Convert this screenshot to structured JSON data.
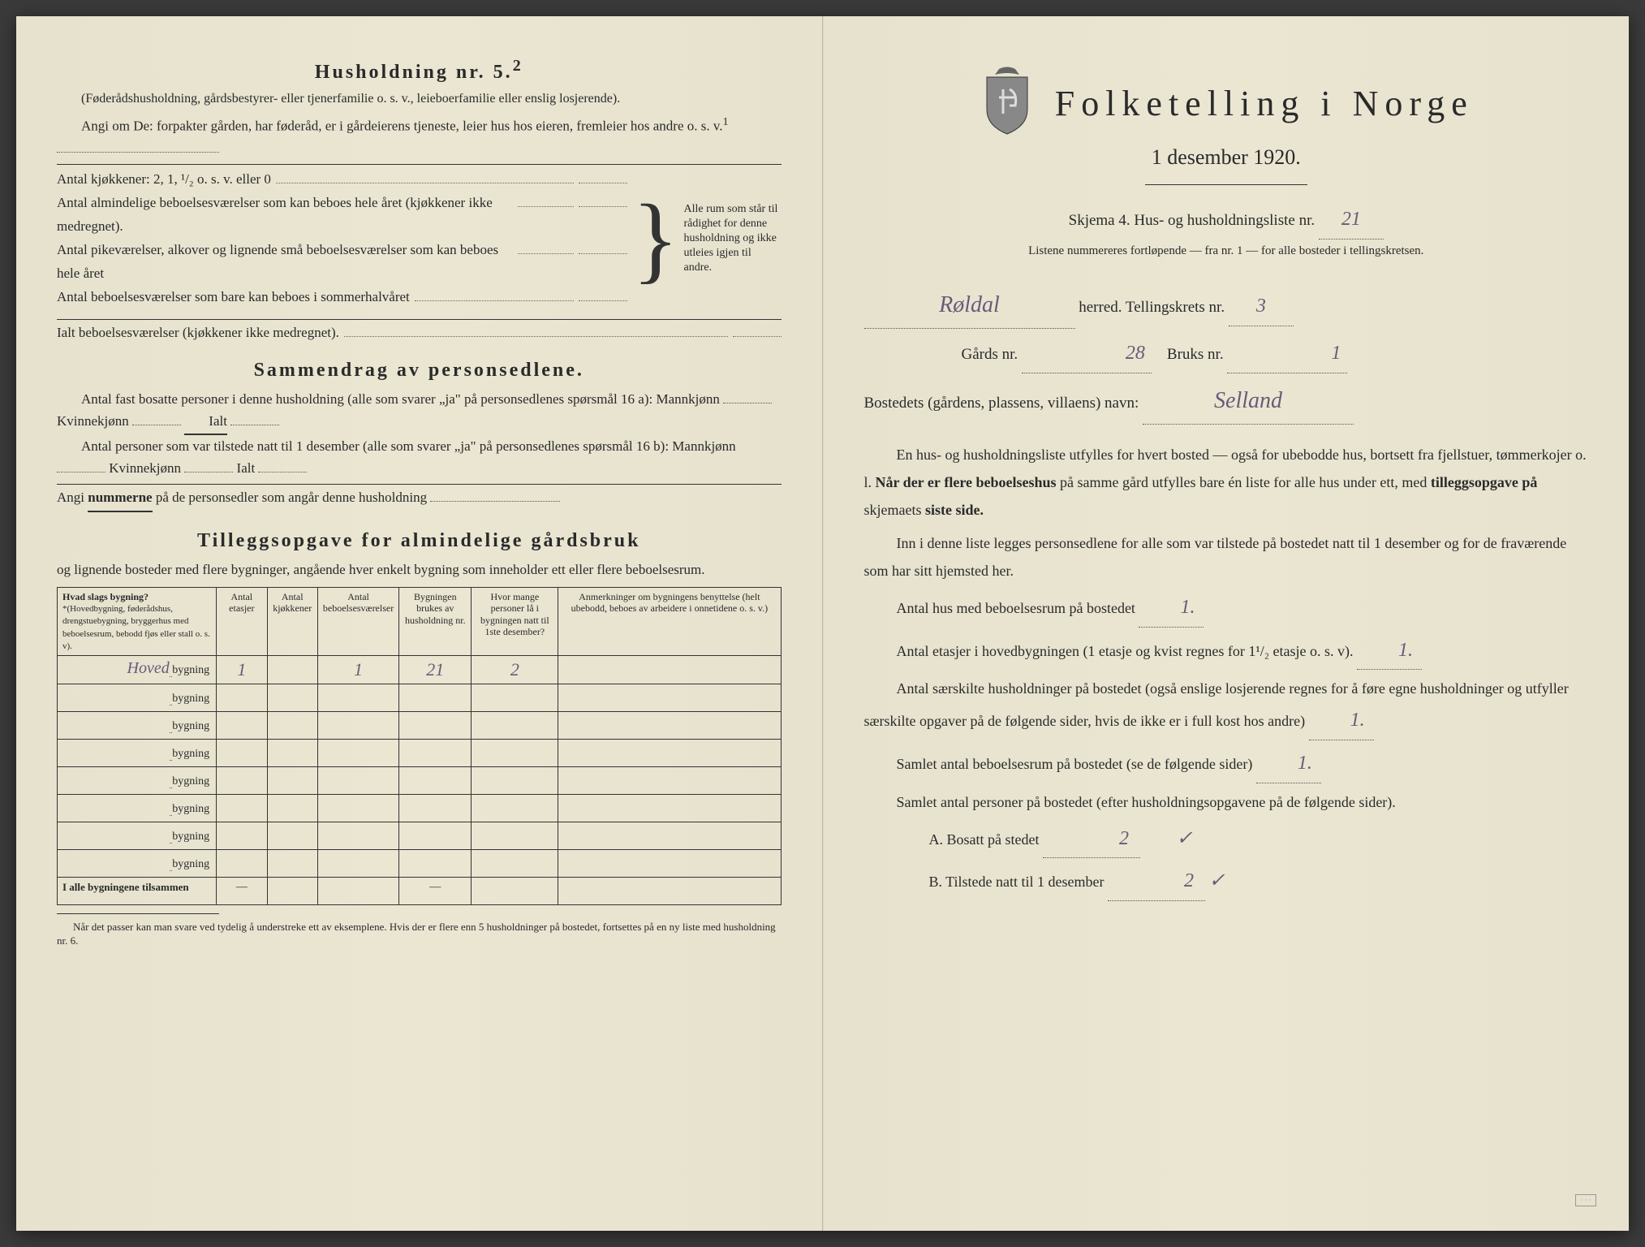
{
  "colors": {
    "paper": "#e8e4d0",
    "ink": "#2a2a2a",
    "handwriting": "#6a5a7a",
    "border": "#333333"
  },
  "left": {
    "h5_title": "Husholdning nr. 5.",
    "h5_sup": "2",
    "h5_sub": "(Føderådshusholdning, gårdsbestyrer- eller tjenerfamilie o. s. v., leieboerfamilie eller enslig losjerende).",
    "angi_line": "Angi om De: forpakter gården, har føderåd, er i gårdeierens tjeneste, leier hus hos eieren, fremleier hos andre o. s. v.",
    "angi_sup": "1",
    "kjokken": "Antal kjøkkener: 2, 1, ¹/₂ o. s. v. eller 0",
    "brace_items": [
      "Antal almindelige beboelsesværelser som kan beboes hele året (kjøkkener ikke medregnet).",
      "Antal pikeværelser, alkover og lignende små beboelsesværelser som kan beboes hele året",
      "Antal beboelsesværelser som bare kan beboes i sommerhalvåret"
    ],
    "brace_right": "Alle rum som står til rådighet for denne husholdning og ikke utleies igjen til andre.",
    "ialt": "Ialt beboelsesværelser (kjøkkener ikke medregnet).",
    "sammendrag_title": "Sammendrag av personsedlene.",
    "sammendrag_p1": "Antal fast bosatte personer i denne husholdning (alle som svarer „ja\" på personsedlenes spørsmål 16 a): Mannkjønn",
    "kvinne": "Kvinnekjønn",
    "ialt_label": "Ialt",
    "sammendrag_p2": "Antal personer som var tilstede natt til 1 desember (alle som svarer „ja\" på personsedlenes spørsmål 16 b): Mannkjønn",
    "angi_num": "Angi",
    "angi_num_bold": "nummerne",
    "angi_num_rest": "på de personsedler som angår denne husholdning",
    "tillegg_title": "Tilleggsopgave for almindelige gårdsbruk",
    "tillegg_sub": "og lignende bosteder med flere bygninger, angående hver enkelt bygning som inneholder ett eller flere beboelsesrum.",
    "table": {
      "headers": [
        "Hvad slags bygning?",
        "Antal etasjer",
        "Antal kjøkkener",
        "Antal beboelsesværelser",
        "Bygningen brukes av husholdning nr.",
        "Hvor mange personer lå i bygningen natt til 1ste desember?",
        "Anmerkninger om bygningens benyttelse (helt ubebodd, beboes av arbeidere i onnetidene o. s. v.)"
      ],
      "header_note": "*(Hovedbygning, føderådshus, drengstuebygning, bryggerhus med beboelsesrum, bebodd fjøs eller stall o. s. v).",
      "rows": [
        {
          "type_hw": "Hoved",
          "suffix": "bygning",
          "etasjer": "1",
          "kjokken": "",
          "bebo": "1",
          "hushold": "21",
          "personer": "2",
          "anm": ""
        },
        {
          "type_hw": "",
          "suffix": "bygning",
          "etasjer": "",
          "kjokken": "",
          "bebo": "",
          "hushold": "",
          "personer": "",
          "anm": ""
        },
        {
          "type_hw": "",
          "suffix": "bygning",
          "etasjer": "",
          "kjokken": "",
          "bebo": "",
          "hushold": "",
          "personer": "",
          "anm": ""
        },
        {
          "type_hw": "",
          "suffix": "bygning",
          "etasjer": "",
          "kjokken": "",
          "bebo": "",
          "hushold": "",
          "personer": "",
          "anm": ""
        },
        {
          "type_hw": "",
          "suffix": "bygning",
          "etasjer": "",
          "kjokken": "",
          "bebo": "",
          "hushold": "",
          "personer": "",
          "anm": ""
        },
        {
          "type_hw": "",
          "suffix": "bygning",
          "etasjer": "",
          "kjokken": "",
          "bebo": "",
          "hushold": "",
          "personer": "",
          "anm": ""
        },
        {
          "type_hw": "",
          "suffix": "bygning",
          "etasjer": "",
          "kjokken": "",
          "bebo": "",
          "hushold": "",
          "personer": "",
          "anm": ""
        },
        {
          "type_hw": "",
          "suffix": "bygning",
          "etasjer": "",
          "kjokken": "",
          "bebo": "",
          "hushold": "",
          "personer": "",
          "anm": ""
        }
      ],
      "total_label": "I alle bygningene tilsammen",
      "dash": "—"
    },
    "footnote": "Når det passer kan man svare ved tydelig å understreke ett av eksemplene. Hvis der er flere enn 5 husholdninger på bostedet, fortsettes på en ny liste med husholdning nr. 6."
  },
  "right": {
    "title": "Folketelling i Norge",
    "date": "1 desember 1920.",
    "skjema": "Skjema 4.  Hus- og husholdningsliste nr.",
    "liste_nr": "21",
    "listene": "Listene nummereres fortløpende — fra nr. 1 — for alle bosteder i tellingskretsen.",
    "herred_hw": "Røldal",
    "herred_label": "herred.  Tellingskrets nr.",
    "krets_nr": "3",
    "gard_label": "Gårds nr.",
    "gard_nr": "28",
    "bruks_label": "Bruks nr.",
    "bruks_nr": "1",
    "bosted_label": "Bostedets (gårdens, plassens, villaens) navn:",
    "bosted_hw": "Selland",
    "p1": "En hus- og husholdningsliste utfylles for hvert bosted — også for ubebodde hus, bortsett fra fjellstuer, tømmerkojer o. l.",
    "p1b_pre": "Når der er",
    "p1b_bold": "flere beboelseshus",
    "p1b_post": "på samme gård utfylles bare én liste for alle hus under ett, med",
    "p1b_bold2": "tilleggsopgave på",
    "p1b_end": "skjemaets",
    "p1b_bold3": "siste side.",
    "p2": "Inn i denne liste legges personsedlene for alle som var tilstede på bostedet natt til 1 desember og for de fraværende som har sitt hjemsted her.",
    "q1": "Antal hus med beboelsesrum på bostedet",
    "q1_val": "1.",
    "q2": "Antal etasjer i hovedbygningen (1 etasje og kvist regnes for 1¹/₂ etasje o. s. v).",
    "q2_val": "1.",
    "q3": "Antal særskilte husholdninger på bostedet (også enslige losjerende regnes for å føre egne husholdninger og utfyller særskilte opgaver på de følgende sider, hvis de ikke er i full kost hos andre)",
    "q3_val": "1.",
    "q4": "Samlet antal beboelsesrum på bostedet (se de følgende sider)",
    "q4_val": "1.",
    "q5": "Samlet antal personer på bostedet (efter husholdningsopgavene på de følgende sider).",
    "qA": "A.  Bosatt på stedet",
    "qA_val": "2",
    "qB": "B.  Tilstede natt til 1 desember",
    "qB_val": "2",
    "check": "✓"
  }
}
